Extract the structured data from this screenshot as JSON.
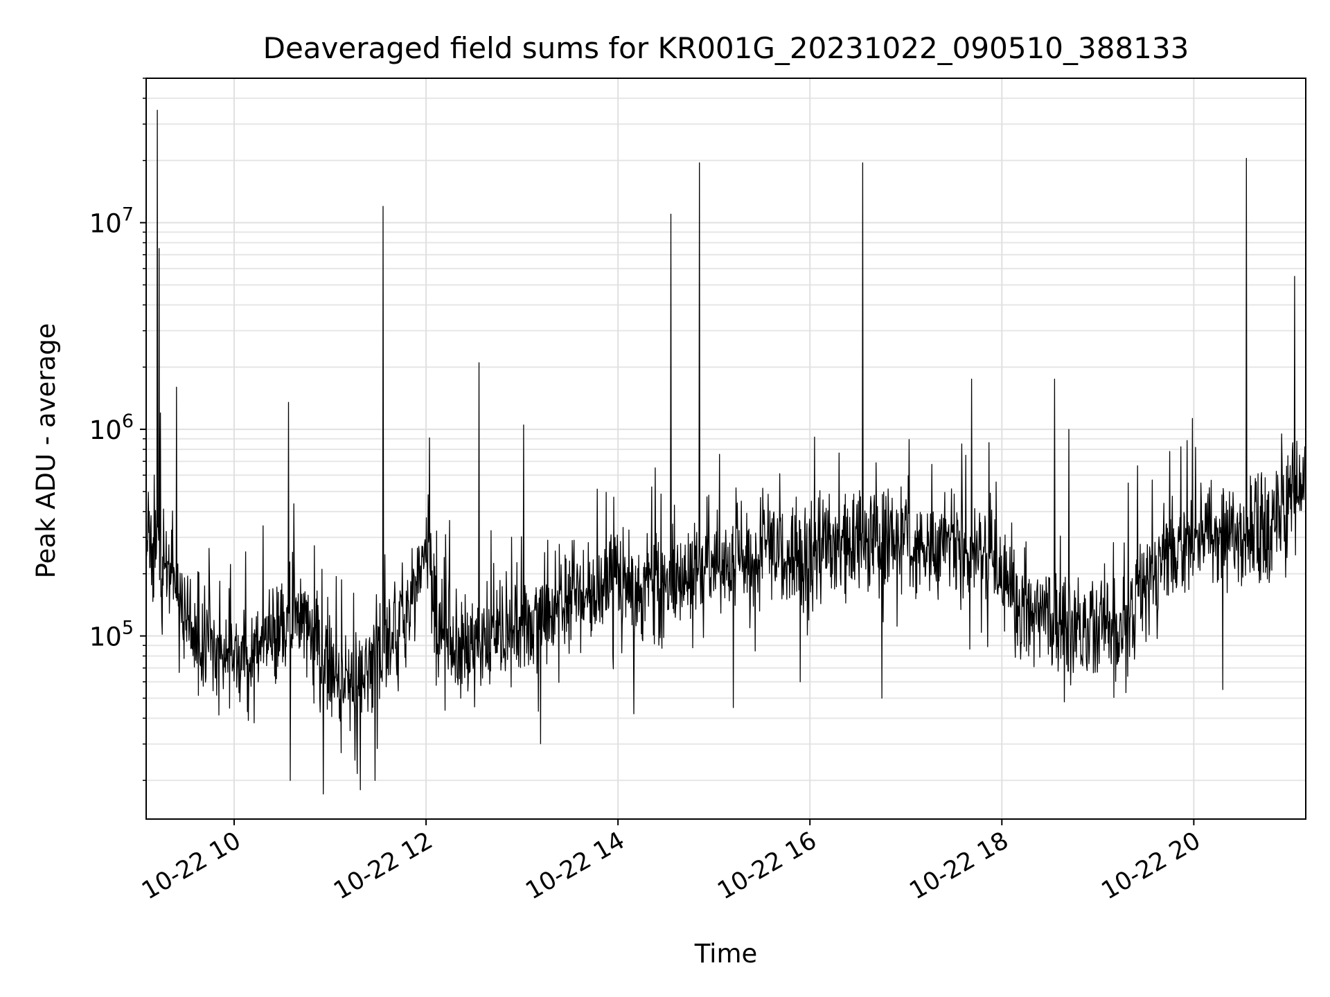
{
  "chart_data": {
    "type": "line",
    "title": "Deaveraged field sums for KR001G_20231022_090510_388133",
    "xlabel": "Time",
    "ylabel": "Peak ADU - average",
    "yscale": "log",
    "xlim": [
      "2023-10-22 09:05",
      "2023-10-22 21:10"
    ],
    "ylim": [
      13000,
      50000000
    ],
    "grid": true,
    "x_ticks": [
      {
        "value": "2023-10-22 10:00",
        "label": "10-22 10"
      },
      {
        "value": "2023-10-22 12:00",
        "label": "10-22 12"
      },
      {
        "value": "2023-10-22 14:00",
        "label": "10-22 14"
      },
      {
        "value": "2023-10-22 16:00",
        "label": "10-22 16"
      },
      {
        "value": "2023-10-22 18:00",
        "label": "10-22 18"
      },
      {
        "value": "2023-10-22 20:00",
        "label": "10-22 20"
      }
    ],
    "y_ticks": [
      {
        "value": 100000,
        "base": "10",
        "exp": "5"
      },
      {
        "value": 1000000,
        "base": "10",
        "exp": "6"
      },
      {
        "value": 10000000,
        "base": "10",
        "exp": "7"
      }
    ],
    "line_color": "#000000",
    "baseline": [
      [
        "2023-10-22 09:05",
        280000
      ],
      [
        "2023-10-22 09:15",
        250000
      ],
      [
        "2023-10-22 09:25",
        150000
      ],
      [
        "2023-10-22 09:40",
        85000
      ],
      [
        "2023-10-22 10:00",
        80000
      ],
      [
        "2023-10-22 10:20",
        90000
      ],
      [
        "2023-10-22 10:40",
        140000
      ],
      [
        "2023-10-22 10:55",
        80000
      ],
      [
        "2023-10-22 11:10",
        55000
      ],
      [
        "2023-10-22 11:25",
        80000
      ],
      [
        "2023-10-22 11:40",
        100000
      ],
      [
        "2023-10-22 11:55",
        180000
      ],
      [
        "2023-10-22 12:00",
        300000
      ],
      [
        "2023-10-22 12:08",
        100000
      ],
      [
        "2023-10-22 12:30",
        80000
      ],
      [
        "2023-10-22 12:50",
        100000
      ],
      [
        "2023-10-22 13:10",
        120000
      ],
      [
        "2023-10-22 13:30",
        160000
      ],
      [
        "2023-10-22 14:00",
        180000
      ],
      [
        "2023-10-22 14:30",
        180000
      ],
      [
        "2023-10-22 15:00",
        210000
      ],
      [
        "2023-10-22 15:30",
        240000
      ],
      [
        "2023-10-22 16:00",
        260000
      ],
      [
        "2023-10-22 16:30",
        280000
      ],
      [
        "2023-10-22 17:00",
        290000
      ],
      [
        "2023-10-22 17:30",
        280000
      ],
      [
        "2023-10-22 17:55",
        220000
      ],
      [
        "2023-10-22 18:15",
        150000
      ],
      [
        "2023-10-22 18:40",
        100000
      ],
      [
        "2023-10-22 19:00",
        110000
      ],
      [
        "2023-10-22 19:15",
        100000
      ],
      [
        "2023-10-22 19:30",
        200000
      ],
      [
        "2023-10-22 19:45",
        280000
      ],
      [
        "2023-10-22 20:15",
        300000
      ],
      [
        "2023-10-22 20:45",
        330000
      ],
      [
        "2023-10-22 21:10",
        550000
      ]
    ],
    "spikes": [
      [
        "2023-10-22 09:12",
        35000000
      ],
      [
        "2023-10-22 09:13",
        7500000
      ],
      [
        "2023-10-22 09:14",
        1200000
      ],
      [
        "2023-10-22 09:24",
        1600000
      ],
      [
        "2023-10-22 10:34",
        1350000
      ],
      [
        "2023-10-22 11:33",
        12000000
      ],
      [
        "2023-10-22 12:33",
        2100000
      ],
      [
        "2023-10-22 13:01",
        1050000
      ],
      [
        "2023-10-22 14:33",
        11000000
      ],
      [
        "2023-10-22 14:51",
        19500000
      ],
      [
        "2023-10-22 16:33",
        19500000
      ],
      [
        "2023-10-22 17:41",
        1750000
      ],
      [
        "2023-10-22 18:33",
        1750000
      ],
      [
        "2023-10-22 18:42",
        1000000
      ],
      [
        "2023-10-22 20:33",
        20500000
      ],
      [
        "2023-10-22 21:03",
        5500000
      ]
    ],
    "dips": [
      [
        "2023-10-22 11:19",
        18000
      ],
      [
        "2023-10-22 11:28",
        20000
      ],
      [
        "2023-10-22 10:35",
        20000
      ],
      [
        "2023-10-22 14:10",
        42000
      ],
      [
        "2023-10-22 15:12",
        45000
      ],
      [
        "2023-10-22 16:45",
        50000
      ],
      [
        "2023-10-22 15:54",
        60000
      ],
      [
        "2023-10-22 18:39",
        48000
      ],
      [
        "2023-10-22 20:18",
        55000
      ]
    ]
  }
}
